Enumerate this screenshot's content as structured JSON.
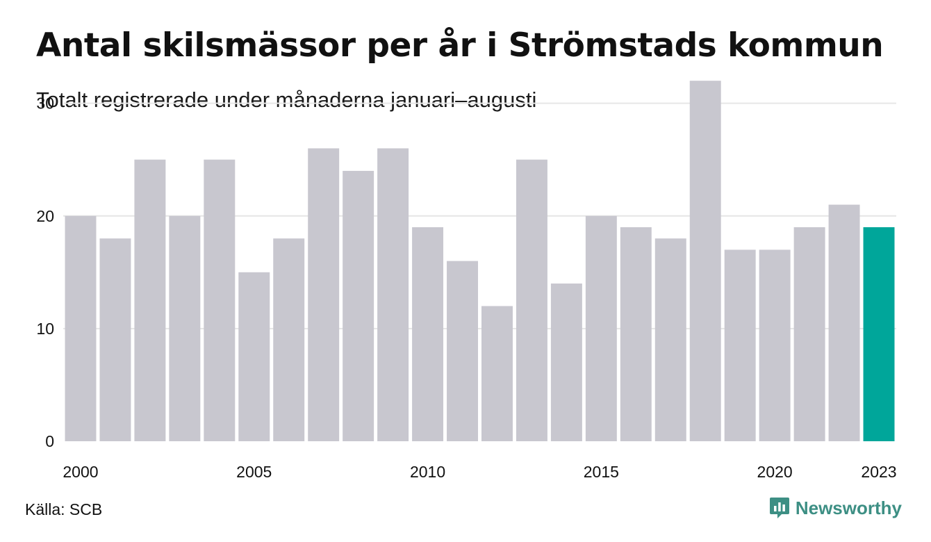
{
  "chart_data": {
    "type": "bar",
    "title": "Antal skilsmässor per år i Strömstads kommun",
    "subtitle": "Totalt registrerade under månaderna januari–augusti",
    "categories": [
      "2000",
      "2001",
      "2002",
      "2003",
      "2004",
      "2005",
      "2006",
      "2007",
      "2008",
      "2009",
      "2010",
      "2011",
      "2012",
      "2013",
      "2014",
      "2015",
      "2016",
      "2017",
      "2018",
      "2019",
      "2020",
      "2021",
      "2022",
      "2023"
    ],
    "values": [
      20,
      18,
      25,
      20,
      25,
      15,
      18,
      26,
      24,
      26,
      19,
      16,
      12,
      25,
      14,
      20,
      19,
      18,
      32,
      17,
      17,
      19,
      21,
      19
    ],
    "x_tick_labels": [
      "2000",
      "2005",
      "2010",
      "2015",
      "2020",
      "2023"
    ],
    "y_ticks": [
      0,
      10,
      20,
      30
    ],
    "ylim": [
      0,
      33
    ],
    "xlabel": "",
    "ylabel": "",
    "grid": true,
    "highlight_category": "2023",
    "colors": {
      "bar": "#c8c7cf",
      "highlight": "#00a69a",
      "grid": "#e6e6e6",
      "tick_text": "#111111"
    }
  },
  "footer": {
    "source": "Källa: SCB",
    "brand": "Newsworthy",
    "brand_icon": "newsworthy-logo-icon",
    "brand_color": "#3d8f84"
  }
}
